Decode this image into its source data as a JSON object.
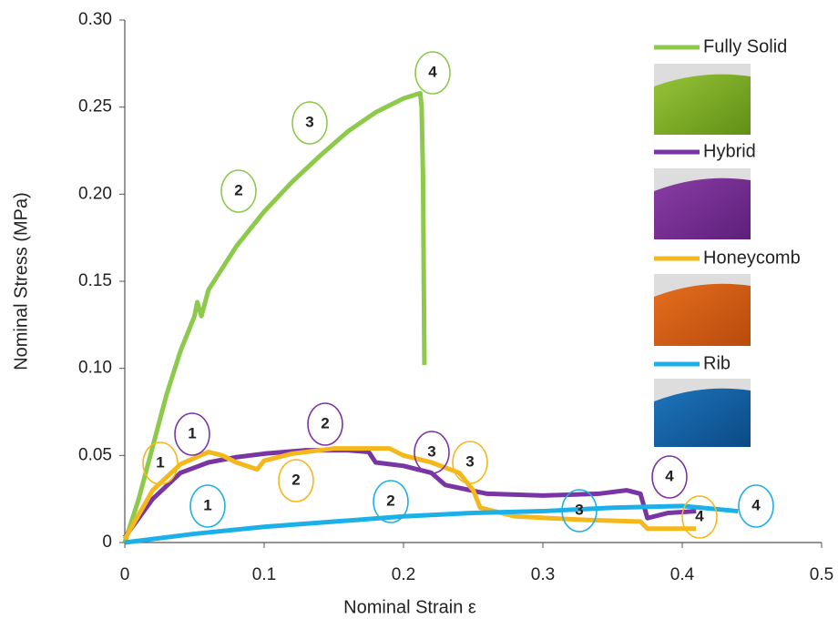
{
  "chart_data": {
    "type": "line",
    "x_label": "Nominal Strain ε",
    "y_label": "Nominal Stress (MPa)",
    "xlim": [
      0,
      0.5
    ],
    "ylim": [
      0,
      0.3
    ],
    "xticks": [
      0,
      0.1,
      0.2,
      0.3,
      0.4,
      0.5
    ],
    "yticks": [
      0,
      0.05,
      {
        "value": 0.1,
        "label": "0.10"
      },
      0.15,
      {
        "value": 0.2,
        "label": "0.20"
      },
      0.25,
      {
        "value": 0.3,
        "label": "0.30"
      }
    ],
    "series": [
      {
        "name": "Fully Solid",
        "color": "#8dc94a",
        "x": [
          0,
          0.01,
          0.02,
          0.03,
          0.04,
          0.05,
          0.052,
          0.055,
          0.06,
          0.08,
          0.1,
          0.12,
          0.14,
          0.16,
          0.18,
          0.2,
          0.212,
          0.213,
          0.214,
          0.215
        ],
        "values": [
          0,
          0.025,
          0.055,
          0.085,
          0.11,
          0.13,
          0.138,
          0.13,
          0.145,
          0.17,
          0.19,
          0.207,
          0.222,
          0.236,
          0.247,
          0.255,
          0.258,
          0.25,
          0.21,
          0.102
        ]
      },
      {
        "name": "Hybrid",
        "color": "#7a35a5",
        "x": [
          0,
          0.02,
          0.04,
          0.06,
          0.08,
          0.1,
          0.13,
          0.16,
          0.175,
          0.18,
          0.2,
          0.22,
          0.23,
          0.26,
          0.3,
          0.34,
          0.36,
          0.37,
          0.375,
          0.39,
          0.41
        ],
        "values": [
          0.003,
          0.025,
          0.04,
          0.046,
          0.049,
          0.051,
          0.053,
          0.053,
          0.052,
          0.046,
          0.044,
          0.04,
          0.033,
          0.028,
          0.027,
          0.028,
          0.03,
          0.028,
          0.014,
          0.017,
          0.018
        ]
      },
      {
        "name": "Honeycomb",
        "color": "#f5b81c",
        "x": [
          0,
          0.02,
          0.04,
          0.06,
          0.07,
          0.08,
          0.095,
          0.1,
          0.12,
          0.15,
          0.19,
          0.2,
          0.22,
          0.24,
          0.25,
          0.255,
          0.28,
          0.33,
          0.37,
          0.375,
          0.41
        ],
        "values": [
          0.002,
          0.03,
          0.045,
          0.052,
          0.05,
          0.046,
          0.042,
          0.047,
          0.051,
          0.054,
          0.054,
          0.05,
          0.046,
          0.04,
          0.03,
          0.02,
          0.015,
          0.013,
          0.012,
          0.008,
          0.008
        ]
      },
      {
        "name": "Rib",
        "color": "#1cb0e8",
        "x": [
          0,
          0.05,
          0.1,
          0.15,
          0.2,
          0.25,
          0.3,
          0.35,
          0.4,
          0.44
        ],
        "values": [
          0,
          0.005,
          0.009,
          0.012,
          0.015,
          0.017,
          0.018,
          0.02,
          0.021,
          0.018
        ]
      }
    ],
    "annotations": [
      {
        "text": "2",
        "color": "#8dc94a"
      },
      {
        "text": "3",
        "color": "#8dc94a"
      },
      {
        "text": "4",
        "color": "#8dc94a"
      },
      {
        "text": "1",
        "color": "#7a35a5"
      },
      {
        "text": "2",
        "color": "#7a35a5"
      },
      {
        "text": "3",
        "color": "#7a35a5"
      },
      {
        "text": "4",
        "color": "#7a35a5"
      },
      {
        "text": "1",
        "color": "#f5b81c"
      },
      {
        "text": "2",
        "color": "#f5b81c"
      },
      {
        "text": "3",
        "color": "#f5b81c"
      },
      {
        "text": "4",
        "color": "#f5b81c"
      },
      {
        "text": "1",
        "color": "#1cb0e8"
      },
      {
        "text": "2",
        "color": "#1cb0e8"
      },
      {
        "text": "3",
        "color": "#1cb0e8"
      },
      {
        "text": "4",
        "color": "#1cb0e8"
      }
    ]
  }
}
